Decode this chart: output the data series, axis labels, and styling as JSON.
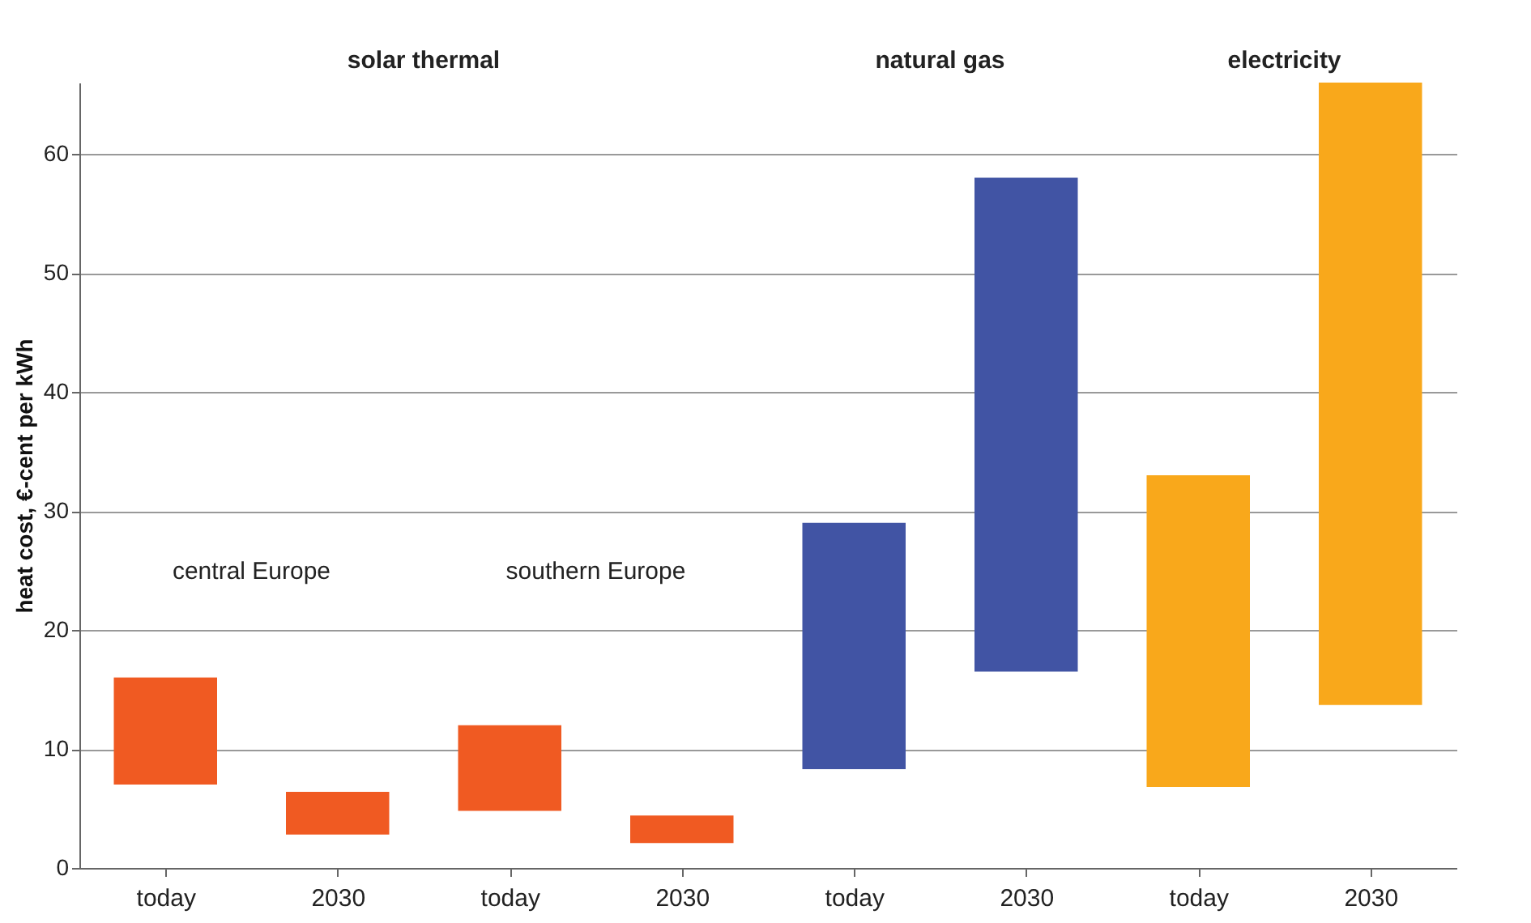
{
  "chart_data": {
    "type": "bar",
    "ylabel": "heat cost, €-cent per kWh",
    "categories": [
      "today",
      "2030",
      "today",
      "2030",
      "today",
      "2030",
      "today",
      "2030"
    ],
    "base": [
      7,
      2.8,
      4.8,
      2.1,
      8.3,
      16.5,
      6.8,
      13.7
    ],
    "values": [
      9,
      3.6,
      7.2,
      2.3,
      20.7,
      41.5,
      26.2,
      52.3
    ],
    "colors": [
      "#f05a22",
      "#f05a22",
      "#f05a22",
      "#f05a22",
      "#4154a4",
      "#4154a4",
      "#f9a81b",
      "#f9a81b"
    ],
    "ylim": [
      0,
      66
    ],
    "yticks": [
      0,
      10,
      20,
      30,
      40,
      50,
      60
    ],
    "grid": "y",
    "annotations": [
      "solar thermal",
      "natural gas",
      "electricity",
      "central Europe",
      "southern Europe"
    ]
  }
}
